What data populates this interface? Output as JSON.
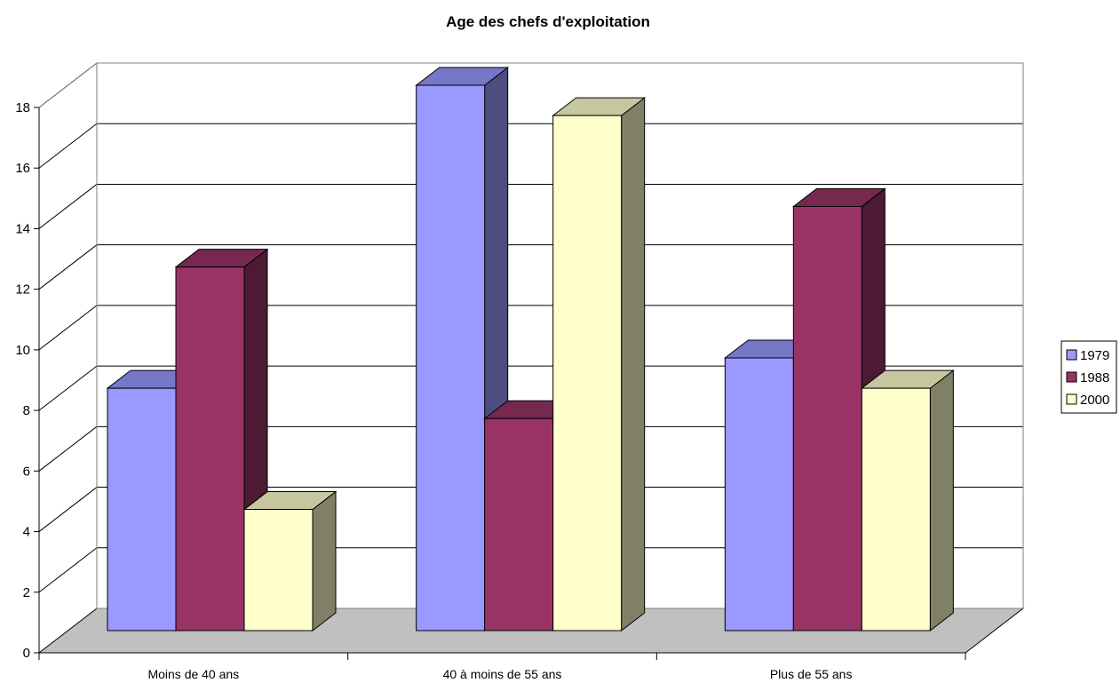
{
  "chart_data": {
    "type": "bar",
    "title": "Age des chefs d'exploitation",
    "xlabel": "",
    "ylabel": "",
    "categories": [
      "Moins de 40 ans",
      "40 à moins de 55 ans",
      "Plus de 55 ans"
    ],
    "series": [
      {
        "name": "1979",
        "values": [
          8,
          18,
          9
        ],
        "color": "#9999ff"
      },
      {
        "name": "1988",
        "values": [
          12,
          7,
          14
        ],
        "color": "#993366"
      },
      {
        "name": "2000",
        "values": [
          4,
          17,
          8
        ],
        "color": "#ffffcc"
      }
    ],
    "ylim": [
      0,
      18
    ],
    "yticks": [
      0,
      2,
      4,
      6,
      8,
      10,
      12,
      14,
      16,
      18
    ],
    "grid": true,
    "legend_position": "right",
    "three_d": true,
    "floor_color": "#c0c0c0"
  }
}
